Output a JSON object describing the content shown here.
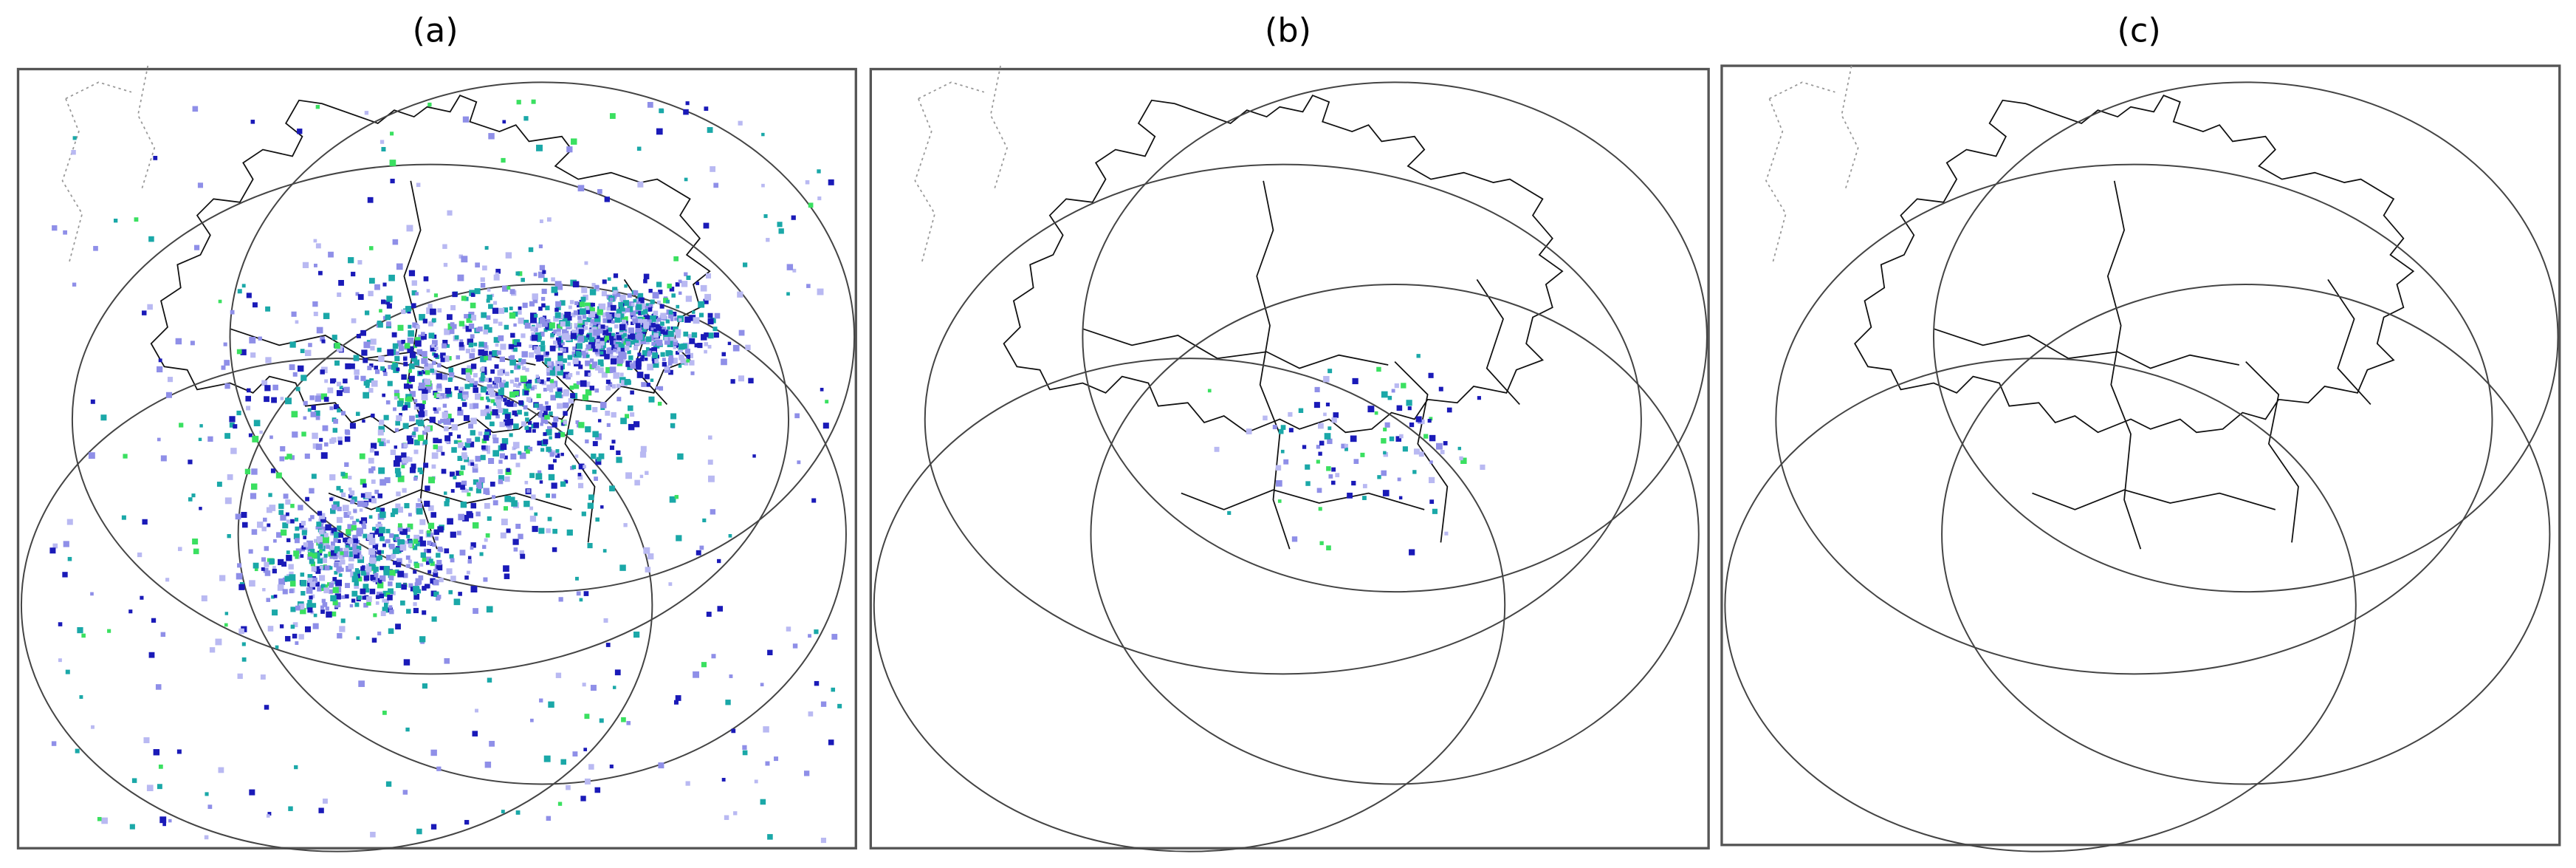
{
  "panels": [
    {
      "title": "(a)"
    },
    {
      "title": "(b)"
    },
    {
      "title": "(c)"
    }
  ]
}
